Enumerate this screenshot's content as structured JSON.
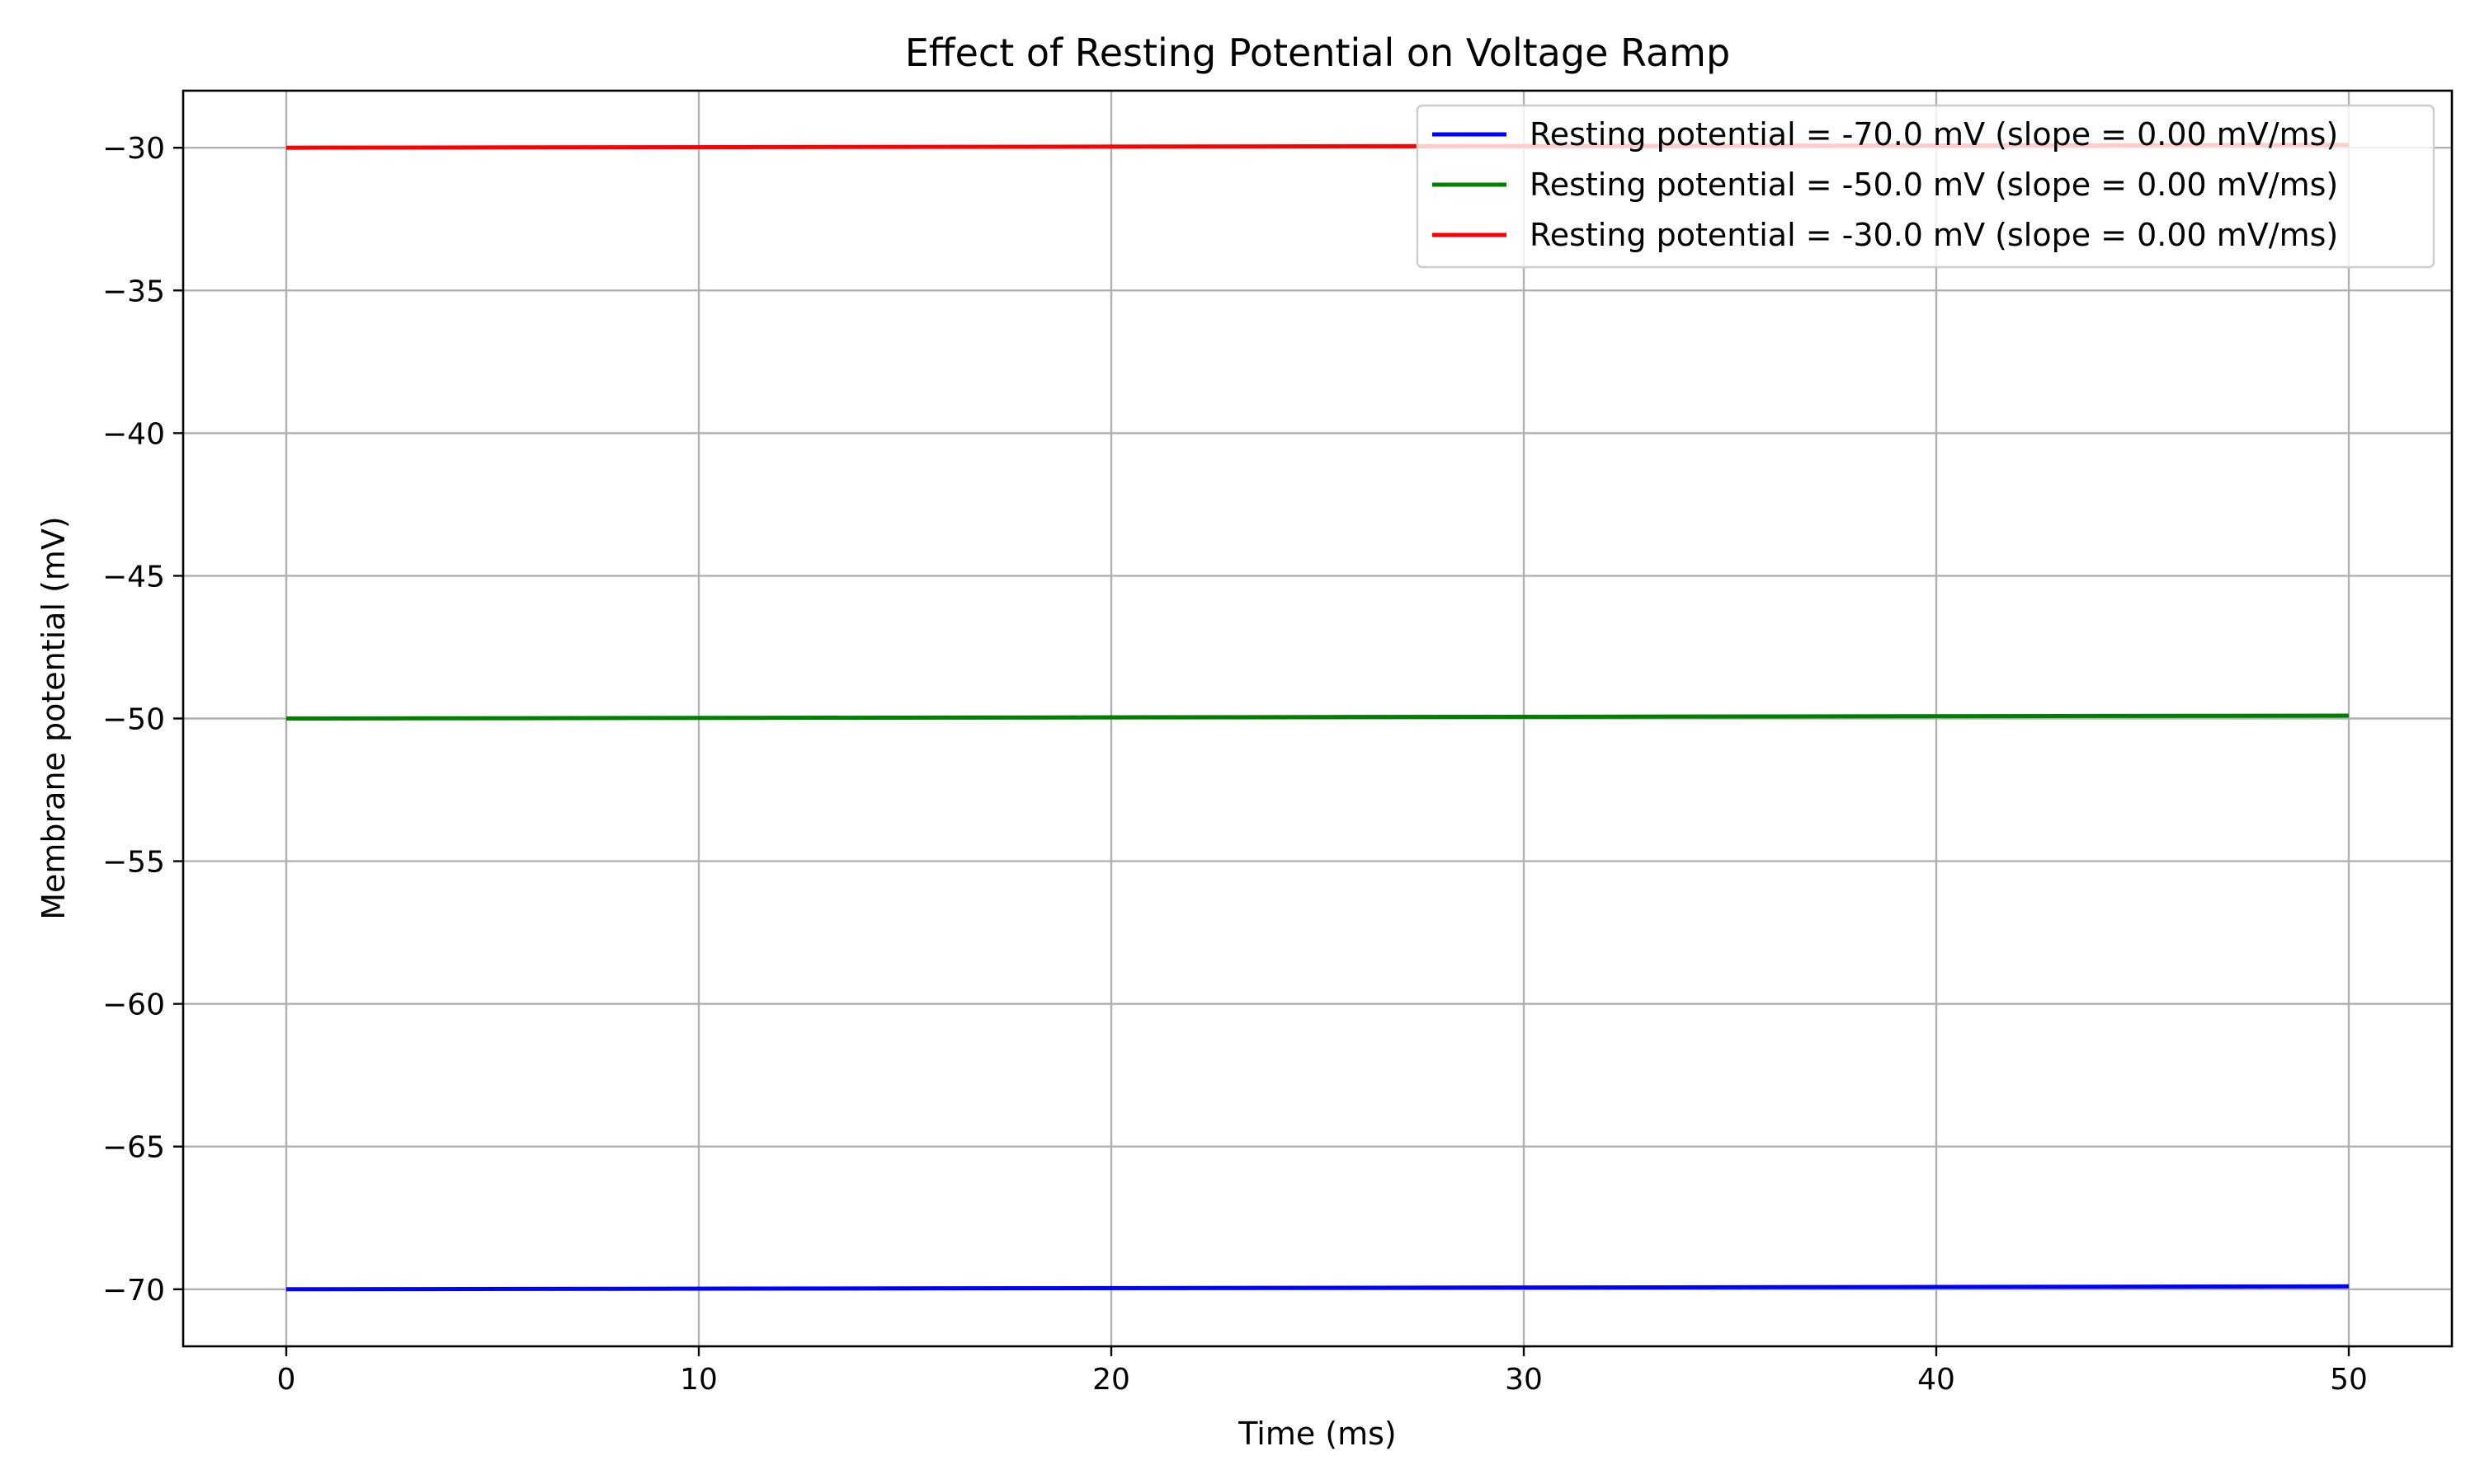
{
  "chart_data": {
    "type": "line",
    "title": "Effect of Resting Potential on Voltage Ramp",
    "xlabel": "Time (ms)",
    "ylabel": "Membrane potential (mV)",
    "xlim": [
      -2.5,
      52.5
    ],
    "ylim": [
      -72,
      -28
    ],
    "xticks": [
      0,
      10,
      20,
      30,
      40,
      50
    ],
    "xtick_labels": [
      "0",
      "10",
      "20",
      "30",
      "40",
      "50"
    ],
    "yticks": [
      -30,
      -35,
      -40,
      -45,
      -50,
      -55,
      -60,
      -65,
      -70
    ],
    "ytick_labels": [
      "−30",
      "−35",
      "−40",
      "−45",
      "−50",
      "−55",
      "−60",
      "−65",
      "−70"
    ],
    "grid": true,
    "legend_position": "top-right",
    "x": [
      0,
      50
    ],
    "series": [
      {
        "name": "Resting potential = -70.0 mV (slope = 0.00 mV/ms)",
        "color": "#0000ff",
        "values": [
          -70.0,
          -69.9
        ]
      },
      {
        "name": "Resting potential = -50.0 mV (slope = 0.00 mV/ms)",
        "color": "#008000",
        "values": [
          -50.0,
          -49.9
        ]
      },
      {
        "name": "Resting potential = -30.0 mV (slope = 0.00 mV/ms)",
        "color": "#ff0000",
        "values": [
          -30.0,
          -29.9
        ]
      }
    ]
  }
}
